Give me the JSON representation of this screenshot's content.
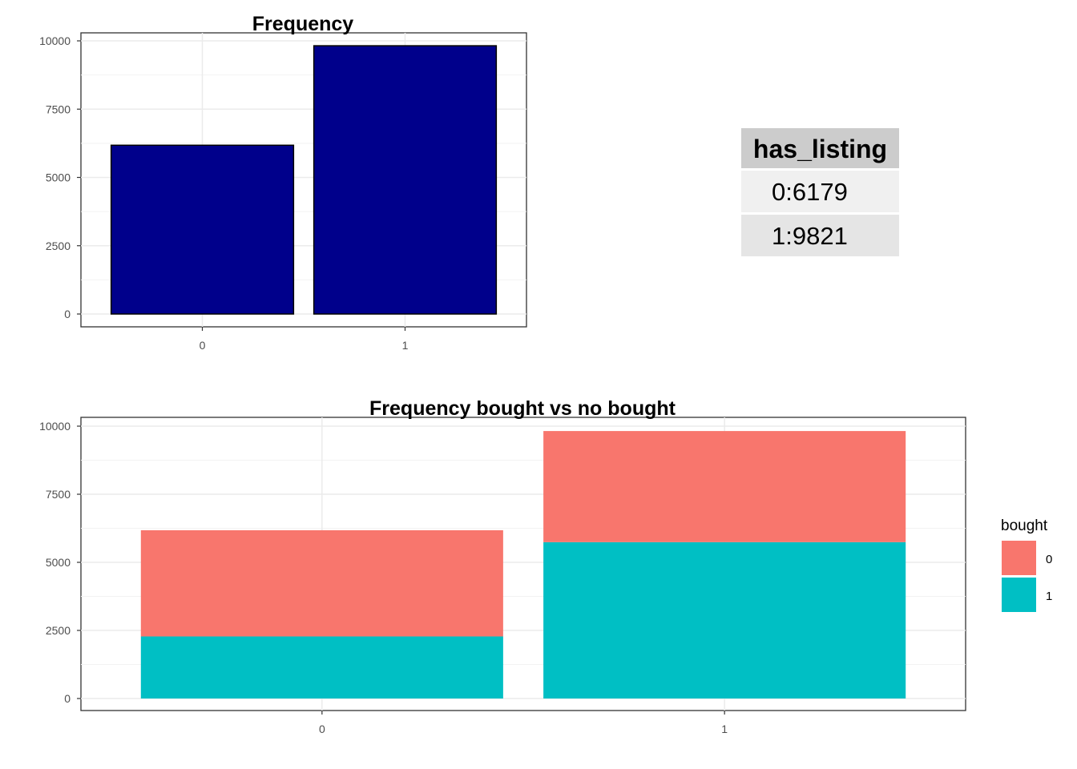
{
  "chart_data": [
    {
      "type": "bar",
      "title": "Frequency",
      "categories": [
        "0",
        "1"
      ],
      "values": [
        6179,
        9821
      ],
      "ylim": [
        0,
        10000
      ],
      "yticks": [
        0,
        2500,
        5000,
        7500,
        10000
      ],
      "ytick_labels": [
        "0",
        "2500",
        "5000",
        "7500",
        "10000"
      ],
      "fill": "#00008B",
      "stroke": "#000000",
      "grid": true
    },
    {
      "type": "bar",
      "stacked": true,
      "title": "Frequency bought vs no bought",
      "categories": [
        "0",
        "1"
      ],
      "series": [
        {
          "name": "0",
          "values": [
            3900,
            4080
          ],
          "color": "#F8766D"
        },
        {
          "name": "1",
          "values": [
            2279,
            5741
          ],
          "color": "#00BFC4"
        }
      ],
      "ylim": [
        0,
        10000
      ],
      "yticks": [
        0,
        2500,
        5000,
        7500,
        10000
      ],
      "ytick_labels": [
        "0",
        "2500",
        "5000",
        "7500",
        "10000"
      ],
      "legend": {
        "title": "bought",
        "position": "right"
      },
      "grid": true
    }
  ],
  "table": {
    "header": "has_listing",
    "rows": [
      "0:6179",
      "1:9821"
    ]
  }
}
